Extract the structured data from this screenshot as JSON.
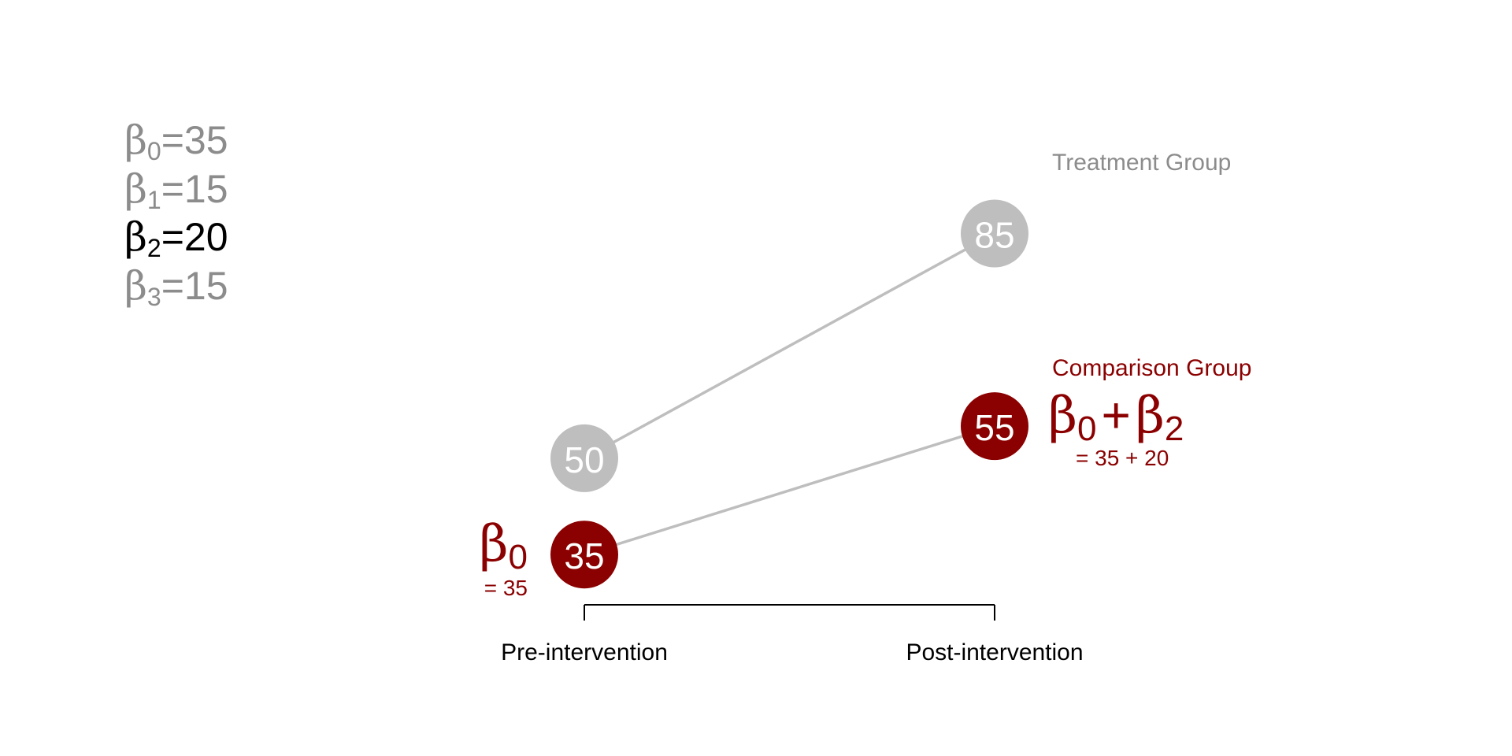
{
  "coefficients": [
    {
      "symbol": "β",
      "sub": "0",
      "text": "=35",
      "highlight": false
    },
    {
      "symbol": "β",
      "sub": "1",
      "text": "=15",
      "highlight": false
    },
    {
      "symbol": "β",
      "sub": "2",
      "text": "=20",
      "highlight": true
    },
    {
      "symbol": "β",
      "sub": "3",
      "text": "=15",
      "highlight": false
    }
  ],
  "colors": {
    "treatment": "#bebebe",
    "comparison": "#8b0000",
    "muted_text": "#8c8c8c",
    "highlight_text": "#000000",
    "line": "#bebebe",
    "axis": "#000000"
  },
  "chart_data": {
    "type": "line",
    "title": "",
    "xlabel": "",
    "ylabel": "",
    "categories": [
      "Pre-intervention",
      "Post-intervention"
    ],
    "ylim": [
      30,
      95
    ],
    "series": [
      {
        "name": "Treatment Group",
        "values": [
          50,
          85
        ]
      },
      {
        "name": "Comparison Group",
        "values": [
          35,
          55
        ]
      }
    ],
    "annotations": [
      {
        "symbol": "β",
        "sub": "0",
        "equation": "= 35",
        "at": "comparison-pre"
      },
      {
        "symbol": "β",
        "sub": "0",
        "plus": "+",
        "symbol2": "β",
        "sub2": "2",
        "equation": "= 35 + 20",
        "at": "comparison-post"
      }
    ]
  }
}
